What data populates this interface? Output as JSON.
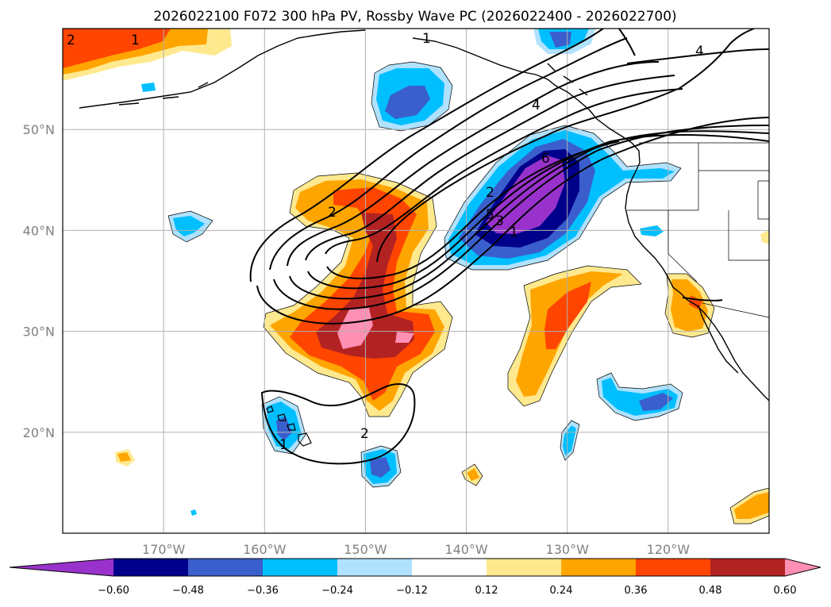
{
  "title": "2026022100 F072 300 hPa PV, Rossby Wave PC (2026022400 - 2026022700)",
  "map": {
    "lon_range": [
      -180,
      -110
    ],
    "lat_range": [
      10,
      60
    ],
    "lat_ticks": [
      "50°N",
      "40°N",
      "30°N",
      "20°N"
    ],
    "lat_tick_values": [
      50,
      40,
      30,
      20
    ],
    "lon_ticks": [
      "170°W",
      "160°W",
      "150°W",
      "140°W",
      "130°W",
      "120°W"
    ],
    "lon_tick_values": [
      -170,
      -160,
      -150,
      -140,
      -130,
      -120
    ],
    "grid": true
  },
  "colorbar": {
    "tick_labels": [
      "−0.60",
      "−0.48",
      "−0.36",
      "−0.24",
      "−0.12",
      "0.12",
      "0.24",
      "0.36",
      "0.48",
      "0.60"
    ],
    "colors": [
      "#9932cc",
      "#00008b",
      "#3a5fcd",
      "#00bfff",
      "#b0e2ff",
      "#ffffff",
      "#ffe98f",
      "#ffa500",
      "#ff4500",
      "#b22222",
      "#ff8fb3"
    ]
  },
  "contour_labels": [
    "2",
    "1",
    "1",
    "4",
    "4",
    "6",
    "2",
    "2",
    "1",
    "5",
    "3",
    "2",
    "1"
  ]
}
